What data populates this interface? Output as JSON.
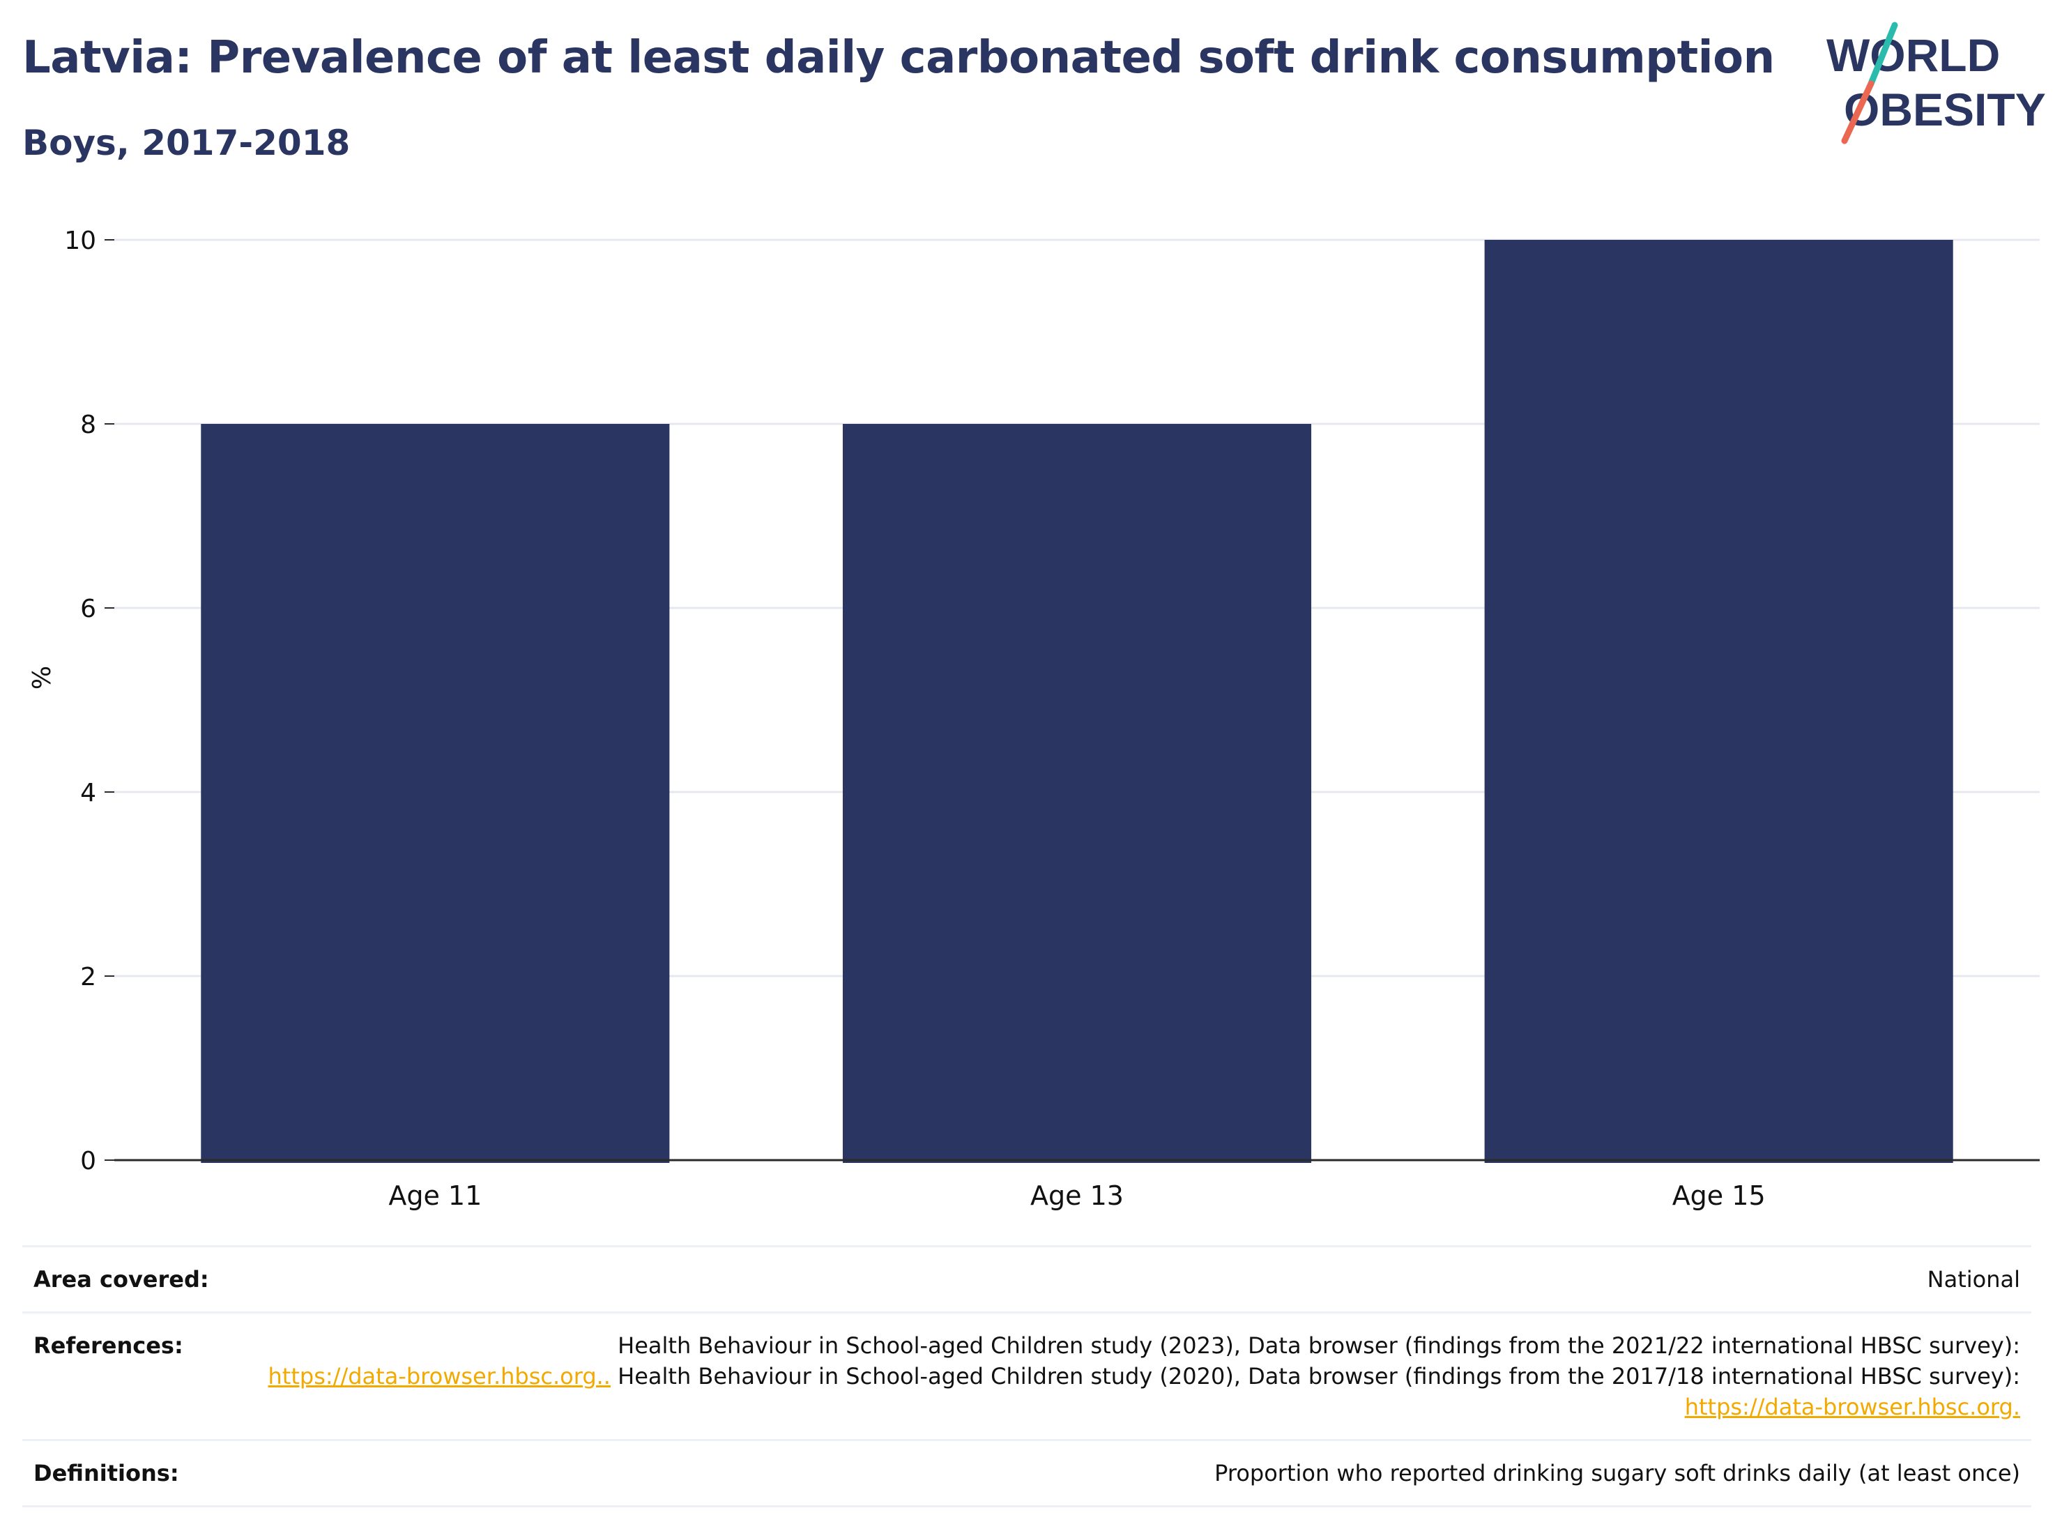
{
  "header": {
    "title": "Latvia: Prevalence of at least daily carbonated soft drink consumption",
    "subtitle": "Boys, 2017-2018"
  },
  "logo": {
    "line1": "WORLD",
    "line2": "OBESITY",
    "accent_teal": "#2bbbad",
    "accent_coral": "#ea6852",
    "text_color": "#2a3561"
  },
  "chart_data": {
    "type": "bar",
    "categories": [
      "Age 11",
      "Age 13",
      "Age 15"
    ],
    "values": [
      8,
      8,
      10
    ],
    "ylabel": "%",
    "xlabel": "",
    "ylim": [
      0,
      10
    ],
    "yticks": [
      0,
      2,
      4,
      6,
      8,
      10
    ],
    "bar_color": "#2a3561",
    "grid": true
  },
  "meta": {
    "area_label": "Area covered:",
    "area_value": "National",
    "references_label": "References:",
    "references_text1": "Health Behaviour in School-aged Children study (2023), Data browser (findings from the 2021/22 international HBSC survey):",
    "references_link1": "https://data-browser.hbsc.org..",
    "references_text2": " Health Behaviour in School-aged Children study (2020), Data browser (findings from the 2017/18 international HBSC survey): ",
    "references_link2": "https://data-browser.hbsc.org.",
    "definitions_label": "Definitions:",
    "definitions_value": "Proportion who reported drinking sugary soft drinks daily (at least once)"
  }
}
